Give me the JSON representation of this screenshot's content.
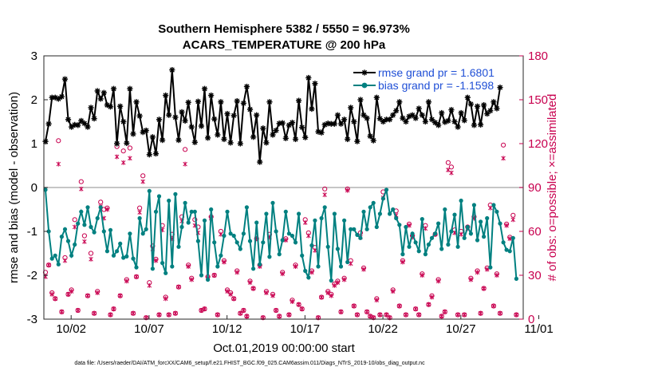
{
  "chart_data": {
    "type": "line",
    "title": "Southern Hemisphere 5382 / 5550 = 96.973%",
    "subtitle": "ACARS_TEMPERATURE @ 200 hPa",
    "xlabel": "Oct.01,2019 00:00:00 start",
    "ylabel": "rmse and bias (model - observation)",
    "ylabel_right": "# of obs: o=possible; ×=assimilated",
    "footer": "data file: /Users/raeder/DAI/ATM_forcXX/CAM6_setup/f.e21.FHIST_BGC.f09_025.CAM6assim.011/Diags_NTrS_2019-10/obs_diag_output.nc",
    "x_range_days": [
      0.25,
      31.0
    ],
    "xtick_values": [
      2,
      7,
      12,
      17,
      22,
      27,
      32
    ],
    "xtick_labels": [
      "10/02",
      "10/07",
      "10/12",
      "10/17",
      "10/22",
      "10/27",
      "11/01"
    ],
    "ylim": [
      -3,
      3
    ],
    "yticks": [
      -3,
      -2,
      -1,
      0,
      1,
      2,
      3
    ],
    "ylim_right": [
      0,
      180
    ],
    "yticks_right": [
      0,
      30,
      60,
      90,
      120,
      150,
      180
    ],
    "colors": {
      "rmse": "#000000",
      "bias": "#008080",
      "counts": "#c8004f",
      "zero_line": "#b4b4b4",
      "legend_text": "#1f4fd6"
    },
    "legend": {
      "position": "top-right",
      "entries": [
        "rmse grand pr = 1.6801",
        "bias grand pr = -1.1598"
      ]
    },
    "series": [
      {
        "name": "rmse",
        "values": [
          1.05,
          1.45,
          2.05,
          2.05,
          2.02,
          2.07,
          2.47,
          1.55,
          1.38,
          1.43,
          1.42,
          1.52,
          1.46,
          1.38,
          1.82,
          1.57,
          2.2,
          2.02,
          2.16,
          1.88,
          1.84,
          2.25,
          1.0,
          1.85,
          1.5,
          1.01,
          2.25,
          1.22,
          1.95,
          1.63,
          1.26,
          1.3,
          0.75,
          1.15,
          0.77,
          1.55,
          1.08,
          2.1,
          1.65,
          2.68,
          1.6,
          1.08,
          1.72,
          1.52,
          1.94,
          1.38,
          1.03,
          1.96,
          1.4,
          2.25,
          1.13,
          2.1,
          1.56,
          1.2,
          1.95,
          1.1,
          1.68,
          1.02,
          1.64,
          1.97,
          1.0,
          1.92,
          2.3,
          1.78,
          1.15,
          1.65,
          0.58,
          1.35,
          1.02,
          1.95,
          1.2,
          1.3,
          1.46,
          1.47,
          1.12,
          1.42,
          1.48,
          1.1,
          1.98,
          1.37,
          1.14,
          2.5,
          1.79,
          2.37,
          1.27,
          1.25,
          1.43,
          1.46,
          1.45,
          1.45,
          1.65,
          1.45,
          1.55,
          1.1,
          1.82,
          1.5,
          1.05,
          2.0,
          1.65,
          1.58,
          1.17,
          1.07,
          2.05,
          1.57,
          1.5,
          1.55,
          1.55,
          1.65,
          1.75,
          1.95,
          1.58,
          1.5,
          1.62,
          1.65,
          1.58,
          1.8,
          1.65,
          1.5,
          1.95,
          1.55,
          1.48,
          1.42,
          1.7,
          1.49,
          1.52,
          1.77,
          1.5,
          1.38,
          1.7,
          1.53,
          2.05,
          1.9,
          1.42,
          1.85,
          1.43,
          1.88,
          1.68,
          1.75,
          1.95,
          1.8,
          2.28
        ]
      },
      {
        "name": "bias",
        "values": [
          -0.05,
          -1.0,
          -1.62,
          -1.55,
          -1.75,
          -1.12,
          -0.95,
          -1.22,
          -1.55,
          -1.3,
          -0.82,
          -0.55,
          -0.85,
          -0.45,
          -0.9,
          -1.02,
          -0.7,
          -0.45,
          -1.0,
          -1.45,
          -0.97,
          -1.55,
          -1.45,
          -1.28,
          -1.6,
          -1.57,
          -1.05,
          -1.62,
          -1.82,
          -0.7,
          -1.05,
          -0.95,
          -0.08,
          -1.85,
          -0.55,
          -0.2,
          -1.72,
          -1.95,
          -0.3,
          -1.8,
          -0.15,
          -1.35,
          -0.9,
          -0.35,
          -0.8,
          -0.55,
          -0.55,
          -1.22,
          -2.0,
          -0.75,
          -2.1,
          -0.5,
          -1.25,
          -1.8,
          -1.55,
          -1.1,
          -0.55,
          -1.05,
          -1.1,
          -1.25,
          -1.4,
          -1.05,
          -0.45,
          -1.22,
          -1.85,
          -0.8,
          -1.75,
          -1.25,
          -0.6,
          -1.58,
          -0.35,
          -1.0,
          -1.52,
          -1.2,
          -0.55,
          -1.05,
          -1.1,
          -1.25,
          -0.6,
          -1.55,
          -1.9,
          -2.05,
          -1.32,
          -0.75,
          -1.8,
          -0.7,
          -0.45,
          -1.35,
          -2.12,
          -0.6,
          -1.4,
          -1.8,
          -0.75,
          -1.7,
          -0.95,
          -0.95,
          -1.08,
          -1.15,
          -0.55,
          -0.95,
          -0.45,
          -0.35,
          -0.9,
          -0.6,
          -0.25,
          -0.05,
          -0.6,
          -0.5,
          -0.7,
          -0.85,
          -1.52,
          -0.9,
          -1.35,
          -1.05,
          -1.25,
          -1.45,
          -0.72,
          -1.52,
          -1.3,
          -1.15,
          -1.05,
          -0.82,
          -1.4,
          -0.5,
          -1.3,
          -1.0,
          -0.62,
          -1.35,
          -0.3,
          -1.15,
          -0.9,
          -1.05,
          -0.4,
          -1.2,
          -0.78,
          -1.12,
          -0.7,
          -1.82,
          -0.4,
          -0.55,
          -0.82,
          -1.25,
          -1.42,
          -1.45,
          -1.15,
          -2.08
        ]
      },
      {
        "name": "obs_possible",
        "axis": "right",
        "values": [
          32,
          37,
          18,
          14,
          122,
          5,
          42,
          17,
          20,
          68,
          6,
          94,
          57,
          16,
          45,
          4,
          19,
          80,
          75,
          76,
          3,
          7,
          118,
          16,
          115,
          27,
          117,
          4,
          29,
          76,
          98,
          1,
          25,
          50,
          41,
          3,
          64,
          15,
          3,
          58,
          4,
          22,
          70,
          116,
          37,
          28,
          68,
          63,
          6,
          7,
          29,
          70,
          30,
          3,
          60,
          40,
          20,
          18,
          14,
          33,
          4,
          6,
          2,
          26,
          21,
          55,
          37,
          1,
          19,
          58,
          17,
          6,
          2,
          32,
          55,
          3,
          13,
          37,
          10,
          7,
          68,
          59,
          33,
          49,
          1,
          15,
          89,
          19,
          17,
          24,
          26,
          5,
          28,
          89,
          40,
          9,
          3,
          59,
          35,
          5,
          2,
          1,
          14,
          3,
          87,
          3,
          1,
          20,
          74,
          9,
          40,
          3,
          65,
          57,
          7,
          3,
          31,
          64,
          10,
          16,
          58,
          27,
          2,
          5,
          107,
          104,
          61,
          3,
          60,
          3,
          63,
          28,
          70,
          33,
          4,
          21,
          35,
          78,
          9,
          31,
          4,
          119,
          65,
          56,
          71,
          3
        ]
      },
      {
        "name": "obs_assimilated",
        "axis": "right",
        "values": [
          29,
          37,
          17,
          14,
          106,
          5,
          40,
          17,
          19,
          63,
          6,
          89,
          53,
          16,
          41,
          4,
          18,
          77,
          69,
          75,
          3,
          7,
          111,
          16,
          107,
          26,
          110,
          4,
          29,
          73,
          94,
          1,
          23,
          48,
          40,
          3,
          61,
          14,
          3,
          55,
          4,
          22,
          67,
          106,
          36,
          27,
          64,
          59,
          6,
          7,
          28,
          69,
          30,
          3,
          58,
          39,
          19,
          17,
          14,
          32,
          4,
          6,
          2,
          25,
          21,
          55,
          36,
          1,
          18,
          56,
          16,
          6,
          2,
          31,
          54,
          3,
          12,
          36,
          10,
          7,
          66,
          57,
          32,
          47,
          1,
          15,
          85,
          18,
          16,
          23,
          25,
          5,
          27,
          88,
          38,
          9,
          3,
          56,
          34,
          5,
          2,
          1,
          13,
          3,
          83,
          3,
          1,
          19,
          71,
          9,
          39,
          3,
          64,
          56,
          7,
          3,
          30,
          62,
          10,
          15,
          58,
          26,
          2,
          5,
          102,
          100,
          59,
          3,
          58,
          3,
          62,
          27,
          69,
          32,
          4,
          21,
          34,
          76,
          9,
          30,
          4,
          110,
          64,
          55,
          68,
          3
        ]
      }
    ]
  }
}
